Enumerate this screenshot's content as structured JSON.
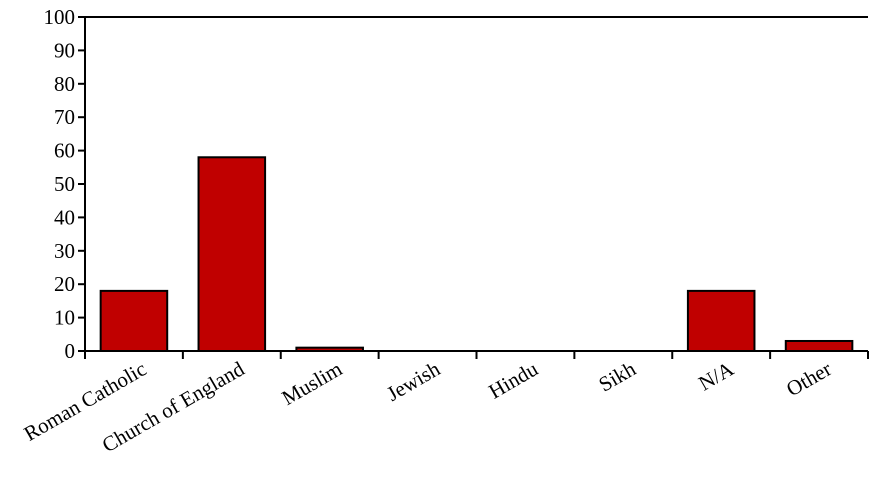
{
  "chart_data": {
    "type": "bar",
    "title": "",
    "xlabel": "",
    "ylabel": "",
    "categories": [
      "Roman Catholic",
      "Church of England",
      "Muslim",
      "Jewish",
      "Hindu",
      "Sikh",
      "N/A",
      "Other"
    ],
    "values": [
      18,
      58,
      1,
      0,
      0,
      0,
      18,
      3
    ],
    "ylim": [
      0,
      100
    ],
    "yticks": [
      0,
      10,
      20,
      30,
      40,
      50,
      60,
      70,
      80,
      90,
      100
    ],
    "ytick_labels": [
      "0",
      "10",
      "20",
      "30",
      "40",
      "50",
      "60",
      "70",
      "80",
      "90",
      "100"
    ],
    "grid": false,
    "legend": "none",
    "bar_color": "#c00000",
    "bar_edge_color": "#000000"
  }
}
